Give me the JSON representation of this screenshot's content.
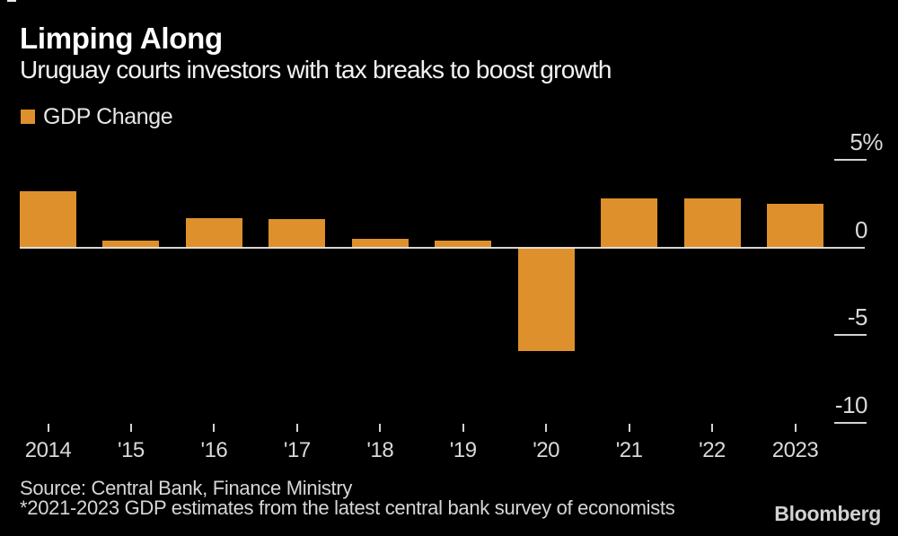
{
  "header": {
    "title": "Limping Along",
    "subtitle": "Uruguay courts investors with tax breaks to boost growth"
  },
  "legend": {
    "label": "GDP Change",
    "swatch_color": "#DE902C"
  },
  "chart_data": {
    "type": "bar",
    "title": "Limping Along",
    "subtitle": "Uruguay courts investors with tax breaks to boost growth",
    "series_name": "GDP Change",
    "categories": [
      "2014",
      "'15",
      "'16",
      "'17",
      "'18",
      "'19",
      "'20",
      "'21",
      "'22",
      "2023"
    ],
    "values": [
      3.2,
      0.4,
      1.7,
      1.6,
      0.5,
      0.4,
      -5.9,
      2.8,
      2.8,
      2.5
    ],
    "unit": "%",
    "ylim": [
      -10,
      5
    ],
    "yticks": [
      {
        "value": 5,
        "label": "5%"
      },
      {
        "value": 0,
        "label": "0"
      },
      {
        "value": -5,
        "label": "-5"
      },
      {
        "value": -10,
        "label": "-10"
      }
    ],
    "bar_color": "#DE902C",
    "axis_text_color": "#d9d9d9",
    "background": "#000000",
    "grid": false,
    "legend_position": "top-left",
    "yaxis_side": "right"
  },
  "footer": {
    "source": "Source: Central Bank, Finance Ministry",
    "note": "*2021-2023 GDP estimates from the latest central bank survey of economists",
    "brand": "Bloomberg"
  }
}
